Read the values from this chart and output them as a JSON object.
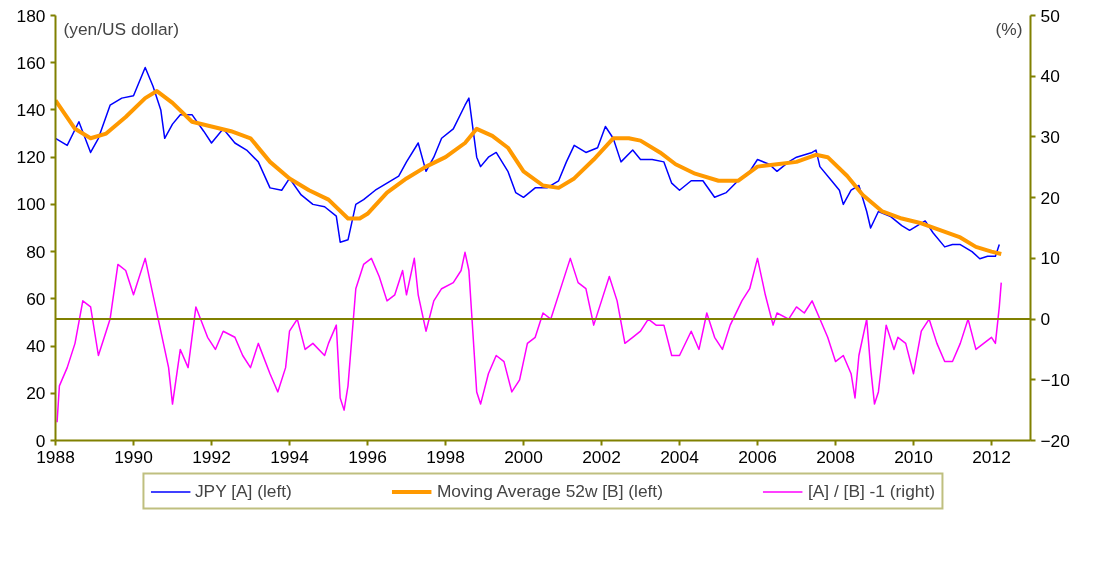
{
  "chart_data": {
    "type": "line",
    "ylabel": "(yen/US dollar)",
    "y2label": "(%)",
    "xlim": [
      1988,
      2013
    ],
    "xticks": [
      1988,
      1990,
      1992,
      1994,
      1996,
      1998,
      2000,
      2002,
      2004,
      2006,
      2008,
      2010,
      2012
    ],
    "ylim": [
      0,
      180
    ],
    "yticks": [
      0,
      20,
      40,
      60,
      80,
      100,
      120,
      140,
      160,
      180
    ],
    "y2lim": [
      -20,
      50
    ],
    "y2ticks": [
      -20,
      -10,
      0,
      10,
      20,
      30,
      40,
      50
    ],
    "grid": false,
    "legend": "bottom",
    "marker": "none",
    "line_style": "solid",
    "ref_lines": [
      {
        "axis": "y2",
        "value": 0,
        "label": null,
        "color": "#808000"
      }
    ],
    "series": [
      {
        "name": "JPY [A] (left)",
        "color": "#0000ff",
        "x": [
          1988.0,
          1988.3,
          1988.6,
          1988.9,
          1989.1,
          1989.4,
          1989.7,
          1990.0,
          1990.3,
          1990.5,
          1990.7,
          1990.8,
          1991.0,
          1991.2,
          1991.5,
          1991.8,
          1992.0,
          1992.3,
          1992.6,
          1992.9,
          1993.2,
          1993.5,
          1993.8,
          1994.0,
          1994.3,
          1994.6,
          1994.9,
          1995.2,
          1995.3,
          1995.5,
          1995.7,
          1995.9,
          1996.2,
          1996.5,
          1996.8,
          1997.0,
          1997.3,
          1997.5,
          1997.7,
          1997.9,
          1998.2,
          1998.5,
          1998.6,
          1998.8,
          1998.9,
          1999.1,
          1999.3,
          1999.6,
          1999.8,
          2000.0,
          2000.3,
          2000.6,
          2000.9,
          2001.1,
          2001.3,
          2001.6,
          2001.9,
          2002.1,
          2002.3,
          2002.5,
          2002.8,
          2003.0,
          2003.3,
          2003.6,
          2003.8,
          2004.0,
          2004.3,
          2004.6,
          2004.9,
          2005.2,
          2005.5,
          2005.8,
          2006.0,
          2006.3,
          2006.5,
          2006.8,
          2007.0,
          2007.4,
          2007.5,
          2007.6,
          2007.9,
          2008.1,
          2008.2,
          2008.4,
          2008.6,
          2008.8,
          2008.9,
          2009.1,
          2009.4,
          2009.7,
          2009.9,
          2010.1,
          2010.3,
          2010.5,
          2010.8,
          2011.0,
          2011.2,
          2011.5,
          2011.7,
          2011.9,
          2012.1,
          2012.2
        ],
        "values": [
          128,
          125,
          135,
          122,
          128,
          142,
          145,
          146,
          158,
          150,
          140,
          128,
          134,
          138,
          138,
          131,
          126,
          132,
          126,
          123,
          118,
          107,
          106,
          111,
          104,
          100,
          99,
          95,
          84,
          85,
          100,
          102,
          106,
          109,
          112,
          118,
          126,
          114,
          120,
          128,
          132,
          142,
          145,
          120,
          116,
          120,
          122,
          114,
          105,
          103,
          107,
          107,
          110,
          118,
          125,
          122,
          124,
          133,
          128,
          118,
          123,
          119,
          119,
          118,
          109,
          106,
          110,
          110,
          103,
          105,
          110,
          114,
          119,
          117,
          114,
          118,
          120,
          122,
          123,
          116,
          110,
          106,
          100,
          106,
          108,
          97,
          90,
          97,
          95,
          91,
          89,
          91,
          93,
          88,
          82,
          83,
          83,
          80,
          77,
          78,
          78,
          83
        ]
      },
      {
        "name": "Moving Average 52w [B] (left)",
        "color": "#ff9900",
        "x": [
          1988.0,
          1988.5,
          1988.9,
          1989.3,
          1989.8,
          1990.3,
          1990.6,
          1991.0,
          1991.5,
          1992.0,
          1992.5,
          1993.0,
          1993.5,
          1994.0,
          1994.5,
          1995.0,
          1995.5,
          1995.8,
          1996.0,
          1996.5,
          1997.0,
          1997.5,
          1998.0,
          1998.5,
          1998.8,
          1999.2,
          1999.6,
          2000.0,
          2000.5,
          2000.9,
          2001.3,
          2001.8,
          2002.3,
          2002.7,
          2003.0,
          2003.5,
          2003.9,
          2004.4,
          2005.0,
          2005.5,
          2006.0,
          2006.5,
          2007.0,
          2007.5,
          2007.8,
          2008.3,
          2008.7,
          2009.2,
          2009.7,
          2010.2,
          2010.7,
          2011.2,
          2011.6,
          2012.0,
          2012.25
        ],
        "values": [
          144,
          132,
          128,
          130,
          137,
          145,
          148,
          143,
          135,
          133,
          131,
          128,
          118,
          111,
          106,
          102,
          94,
          94,
          96,
          105,
          111,
          116,
          120,
          126,
          132,
          129,
          124,
          114,
          108,
          107,
          111,
          119,
          128,
          128,
          127,
          122,
          117,
          113,
          110,
          110,
          116,
          117,
          118,
          121,
          120,
          112,
          104,
          97,
          94,
          92,
          89,
          86,
          82,
          80,
          79
        ]
      },
      {
        "name": "[A] / [B] -1 (right)",
        "color": "#ff00ff",
        "axis": "y2",
        "x": [
          1988.04,
          1988.1,
          1988.3,
          1988.5,
          1988.7,
          1988.9,
          1989.1,
          1989.3,
          1989.4,
          1989.6,
          1989.8,
          1990.0,
          1990.3,
          1990.5,
          1990.7,
          1990.9,
          1991.0,
          1991.2,
          1991.4,
          1991.6,
          1991.9,
          1992.1,
          1992.3,
          1992.6,
          1992.8,
          1993.0,
          1993.2,
          1993.5,
          1993.7,
          1993.9,
          1994.0,
          1994.2,
          1994.4,
          1994.6,
          1994.9,
          1995.0,
          1995.2,
          1995.3,
          1995.4,
          1995.5,
          1995.7,
          1995.9,
          1996.1,
          1996.3,
          1996.5,
          1996.7,
          1996.9,
          1997.0,
          1997.2,
          1997.3,
          1997.5,
          1997.7,
          1997.9,
          1998.2,
          1998.4,
          1998.5,
          1998.6,
          1998.7,
          1998.8,
          1998.9,
          1999.1,
          1999.3,
          1999.5,
          1999.7,
          1999.9,
          2000.1,
          2000.3,
          2000.5,
          2000.7,
          2001.0,
          2001.2,
          2001.4,
          2001.6,
          2001.8,
          2002.0,
          2002.2,
          2002.4,
          2002.6,
          2002.8,
          2003.0,
          2003.2,
          2003.4,
          2003.6,
          2003.8,
          2004.0,
          2004.3,
          2004.5,
          2004.7,
          2004.9,
          2005.1,
          2005.3,
          2005.6,
          2005.8,
          2006.0,
          2006.2,
          2006.4,
          2006.5,
          2006.8,
          2007.0,
          2007.2,
          2007.4,
          2007.6,
          2007.8,
          2008.0,
          2008.2,
          2008.4,
          2008.5,
          2008.6,
          2008.8,
          2008.9,
          2009.0,
          2009.1,
          2009.3,
          2009.5,
          2009.6,
          2009.8,
          2010.0,
          2010.2,
          2010.4,
          2010.6,
          2010.8,
          2011.0,
          2011.2,
          2011.4,
          2011.6,
          2011.8,
          2012.0,
          2012.1,
          2012.2,
          2012.25
        ],
        "values": [
          -17,
          -11,
          -8,
          -4,
          3,
          2,
          -6,
          -2,
          0,
          9,
          8,
          4,
          10,
          4,
          -2,
          -8,
          -14,
          -5,
          -8,
          2,
          -3,
          -5,
          -2,
          -3,
          -6,
          -8,
          -4,
          -9,
          -12,
          -8,
          -2,
          0,
          -5,
          -4,
          -6,
          -4,
          -1,
          -13,
          -15,
          -11,
          5,
          9,
          10,
          7,
          3,
          4,
          8,
          4,
          10,
          4,
          -2,
          3,
          5,
          6,
          8,
          11,
          8,
          -2,
          -12,
          -14,
          -9,
          -6,
          -7,
          -12,
          -10,
          -4,
          -3,
          1,
          0,
          6,
          10,
          6,
          5,
          -1,
          3,
          7,
          3,
          -4,
          -3,
          -2,
          0,
          -1,
          -1,
          -6,
          -6,
          -2,
          -5,
          1,
          -3,
          -5,
          -1,
          3,
          5,
          10,
          4,
          -1,
          1,
          0,
          2,
          1,
          3,
          0,
          -3,
          -7,
          -6,
          -9,
          -13,
          -6,
          0,
          -8,
          -14,
          -12,
          -1,
          -5,
          -3,
          -4,
          -9,
          -2,
          0,
          -4,
          -7,
          -7,
          -4,
          0,
          -5,
          -4,
          -3,
          -4,
          2,
          6
        ]
      }
    ]
  }
}
